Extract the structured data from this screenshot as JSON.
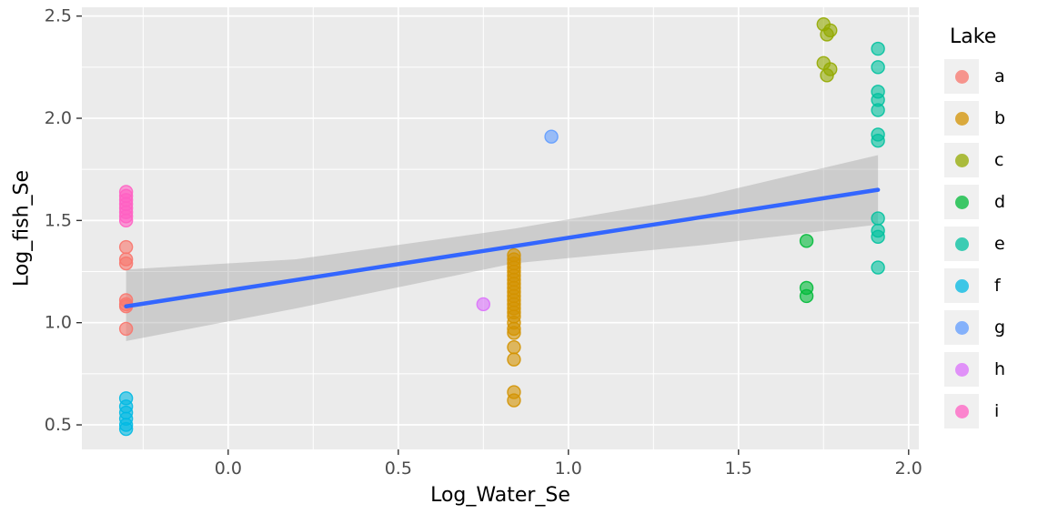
{
  "chart_data": {
    "type": "scatter",
    "title": "",
    "xlabel": "Log_Water_Se",
    "ylabel": "Log_fish_Se",
    "legend_title": "Lake",
    "legend_position": "right",
    "grid": true,
    "panel_color": "#EBEBEB",
    "xlim": [
      -0.43,
      2.03
    ],
    "ylim": [
      0.38,
      2.543
    ],
    "x_ticks": [
      0.0,
      0.5,
      1.0,
      1.5,
      2.0
    ],
    "x_tick_labels": [
      "0.0",
      "0.5",
      "1.0",
      "1.5",
      "2.0"
    ],
    "y_ticks": [
      0.5,
      1.0,
      1.5,
      2.0,
      2.5
    ],
    "y_tick_labels": [
      "0.5",
      "1.0",
      "1.5",
      "2.0",
      "2.5"
    ],
    "point_alpha": 0.6,
    "series": [
      {
        "name": "a",
        "color": "#F8766D",
        "points": [
          [
            -0.3,
            1.37
          ],
          [
            -0.3,
            1.31
          ],
          [
            -0.3,
            1.29
          ],
          [
            -0.3,
            1.11
          ],
          [
            -0.3,
            1.09
          ],
          [
            -0.3,
            1.08
          ],
          [
            -0.3,
            0.97
          ]
        ]
      },
      {
        "name": "b",
        "color": "#D39200",
        "points": [
          [
            0.84,
            1.33
          ],
          [
            0.84,
            1.31
          ],
          [
            0.84,
            1.29
          ],
          [
            0.84,
            1.27
          ],
          [
            0.84,
            1.25
          ],
          [
            0.84,
            1.23
          ],
          [
            0.84,
            1.21
          ],
          [
            0.84,
            1.19
          ],
          [
            0.84,
            1.17
          ],
          [
            0.84,
            1.15
          ],
          [
            0.84,
            1.13
          ],
          [
            0.84,
            1.11
          ],
          [
            0.84,
            1.09
          ],
          [
            0.84,
            1.07
          ],
          [
            0.84,
            1.05
          ],
          [
            0.84,
            1.03
          ],
          [
            0.84,
            1.0
          ],
          [
            0.84,
            0.97
          ],
          [
            0.84,
            0.95
          ],
          [
            0.84,
            0.88
          ],
          [
            0.84,
            0.82
          ],
          [
            0.84,
            0.66
          ],
          [
            0.84,
            0.62
          ]
        ]
      },
      {
        "name": "c",
        "color": "#93AA00",
        "points": [
          [
            1.75,
            2.46
          ],
          [
            1.77,
            2.43
          ],
          [
            1.76,
            2.41
          ],
          [
            1.75,
            2.27
          ],
          [
            1.77,
            2.24
          ],
          [
            1.76,
            2.21
          ]
        ]
      },
      {
        "name": "d",
        "color": "#00BA38",
        "points": [
          [
            1.7,
            1.4
          ],
          [
            1.7,
            1.17
          ],
          [
            1.7,
            1.13
          ]
        ]
      },
      {
        "name": "e",
        "color": "#00C19F",
        "points": [
          [
            1.91,
            2.34
          ],
          [
            1.91,
            2.25
          ],
          [
            1.91,
            2.13
          ],
          [
            1.91,
            2.09
          ],
          [
            1.91,
            2.04
          ],
          [
            1.91,
            1.92
          ],
          [
            1.91,
            1.89
          ],
          [
            1.91,
            1.51
          ],
          [
            1.91,
            1.45
          ],
          [
            1.91,
            1.42
          ],
          [
            1.91,
            1.27
          ]
        ]
      },
      {
        "name": "f",
        "color": "#00B9E3",
        "points": [
          [
            -0.3,
            0.63
          ],
          [
            -0.3,
            0.59
          ],
          [
            -0.3,
            0.56
          ],
          [
            -0.3,
            0.53
          ],
          [
            -0.3,
            0.5
          ],
          [
            -0.3,
            0.48
          ]
        ]
      },
      {
        "name": "g",
        "color": "#619CFF",
        "points": [
          [
            0.95,
            1.91
          ]
        ]
      },
      {
        "name": "h",
        "color": "#DB72FB",
        "points": [
          [
            0.75,
            1.09
          ]
        ]
      },
      {
        "name": "i",
        "color": "#FF61C3",
        "points": [
          [
            -0.3,
            1.64
          ],
          [
            -0.3,
            1.62
          ],
          [
            -0.3,
            1.6
          ],
          [
            -0.3,
            1.58
          ],
          [
            -0.3,
            1.56
          ],
          [
            -0.3,
            1.54
          ],
          [
            -0.3,
            1.52
          ],
          [
            -0.3,
            1.5
          ]
        ]
      }
    ],
    "regression_line": {
      "color": "#3366FF",
      "x": [
        -0.3,
        1.91
      ],
      "y": [
        1.08,
        1.65
      ]
    },
    "confidence_band": {
      "color": "#9A9A9A",
      "opacity": 0.38,
      "upper": [
        [
          -0.3,
          1.26
        ],
        [
          0.2,
          1.31
        ],
        [
          0.84,
          1.46
        ],
        [
          1.4,
          1.62
        ],
        [
          1.91,
          1.82
        ]
      ],
      "lower": [
        [
          -0.3,
          0.91
        ],
        [
          0.2,
          1.07
        ],
        [
          0.84,
          1.29
        ],
        [
          1.4,
          1.38
        ],
        [
          1.91,
          1.48
        ]
      ]
    }
  }
}
